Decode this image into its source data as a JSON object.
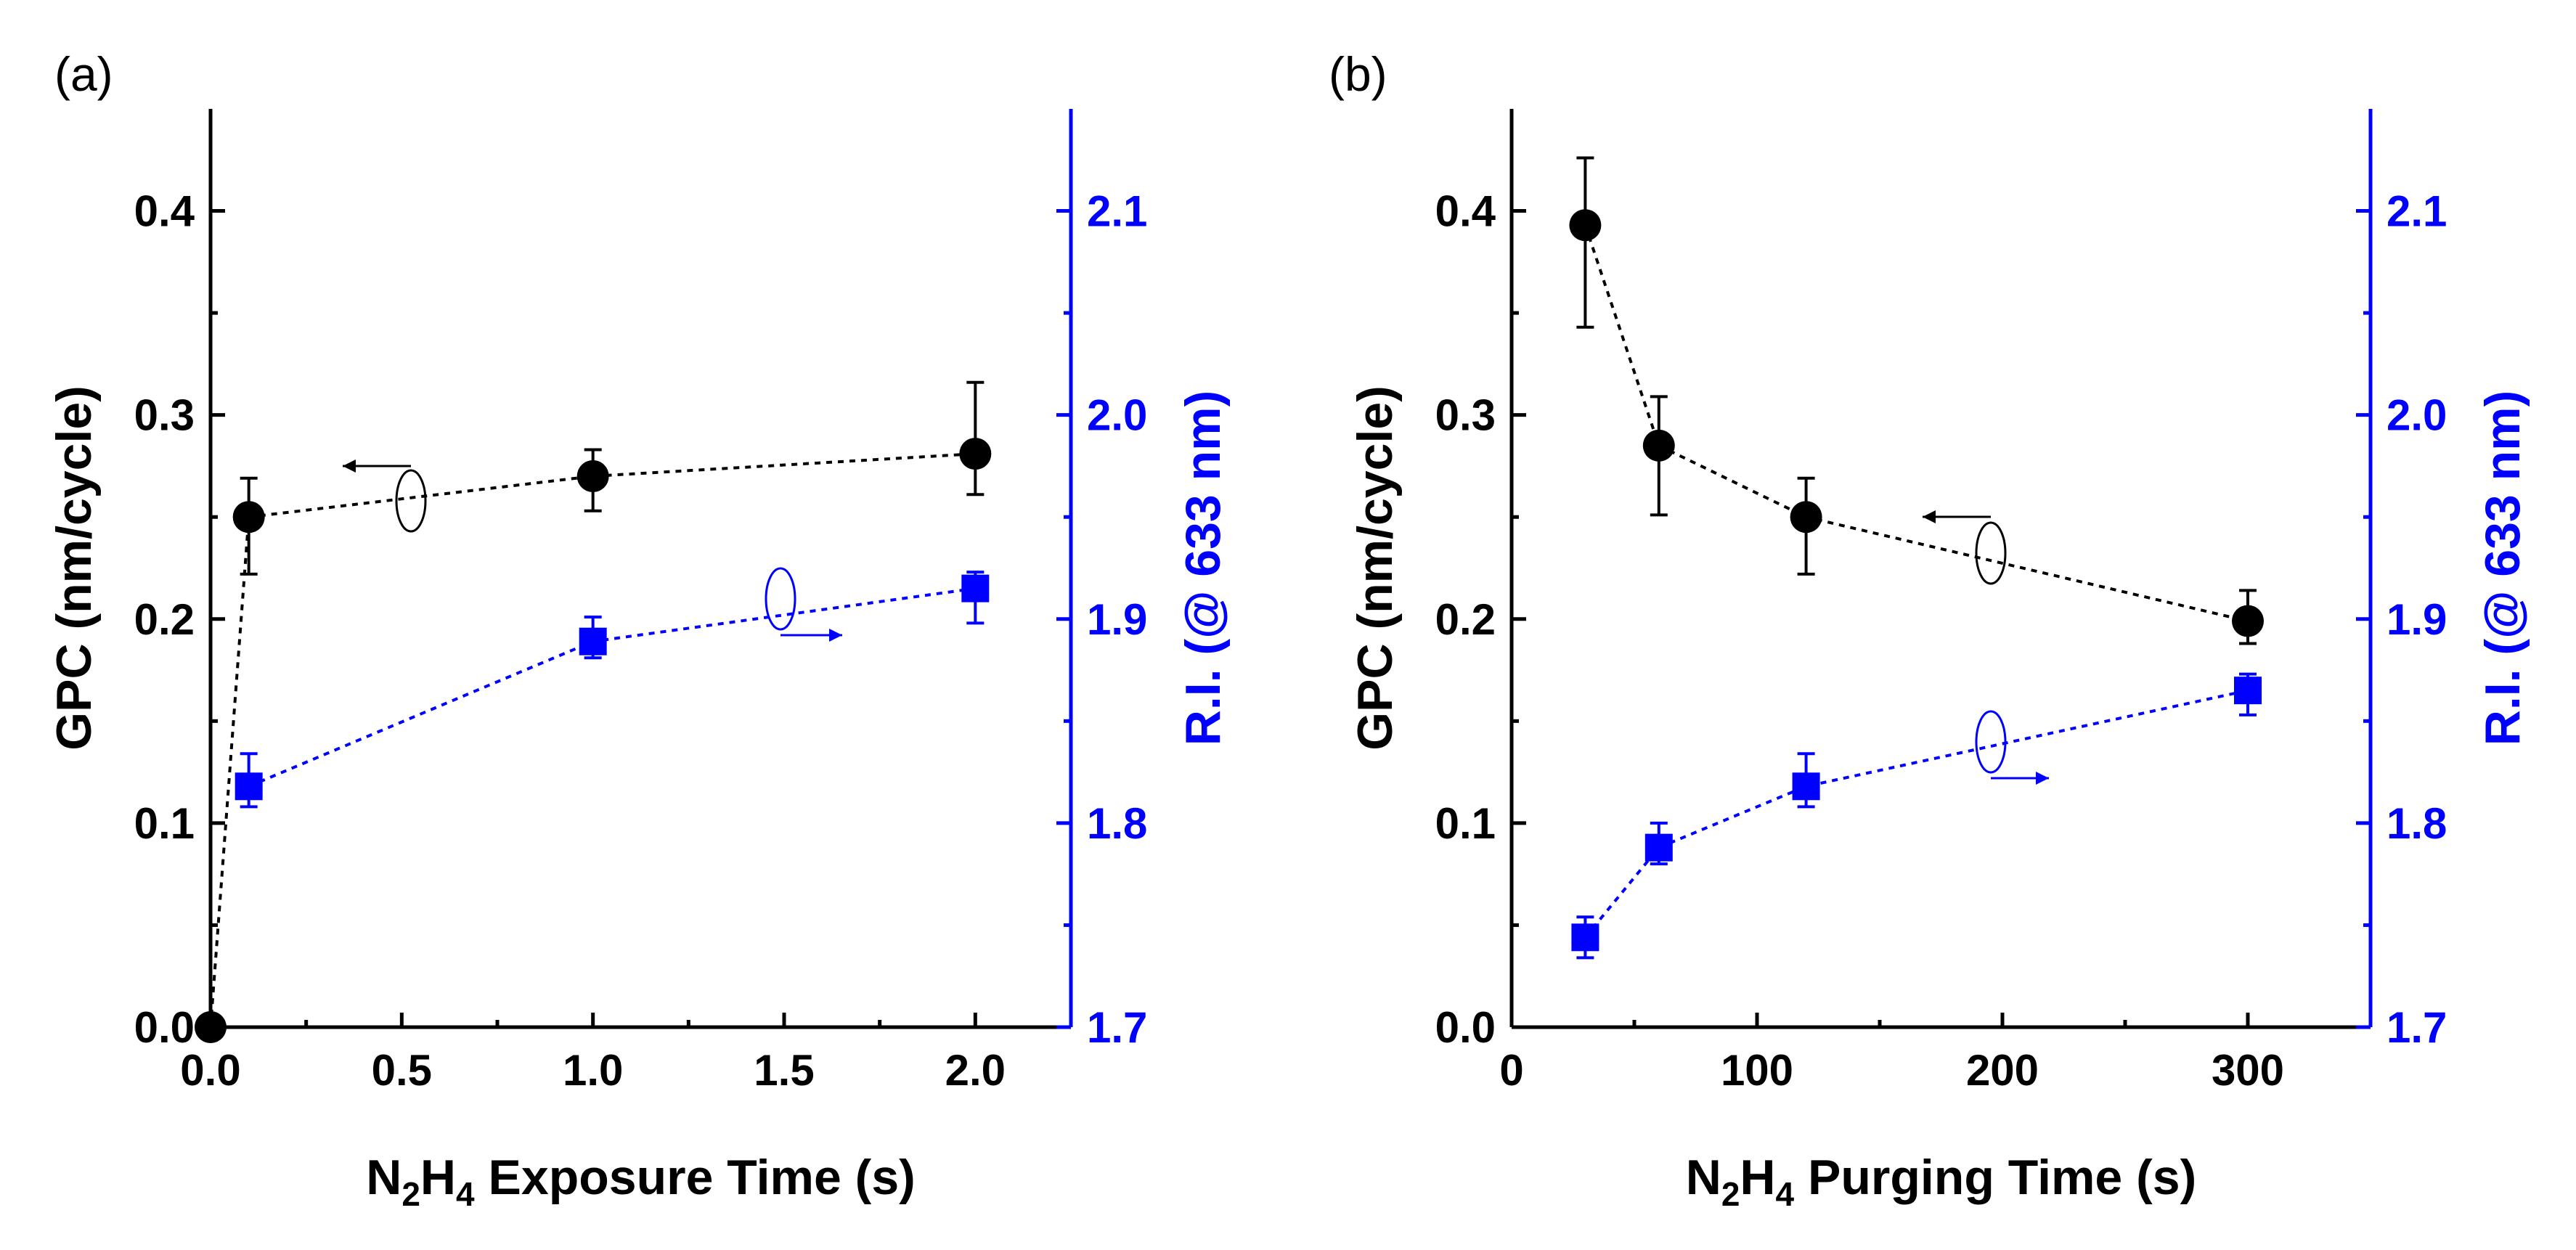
{
  "chart_data": [
    {
      "type": "scatter",
      "panel_label": "(a)",
      "xlabel_parts": [
        "N",
        "2",
        "H",
        "4",
        " Exposure Time (s)"
      ],
      "ylabel_left": "GPC (nm/cycle)",
      "ylabel_right": "R.I. (@ 633 nm)",
      "xlim": [
        0,
        2.25
      ],
      "ylim_left": [
        0,
        0.45
      ],
      "ylim_right": [
        1.7,
        2.15
      ],
      "xticks": [
        0,
        0.5,
        1.0,
        1.5,
        2.0
      ],
      "xtick_labels": [
        "0.0",
        "0.5",
        "1.0",
        "1.5",
        "2.0"
      ],
      "yticks_left": [
        0,
        0.1,
        0.2,
        0.3,
        0.4
      ],
      "ytick_labels_left": [
        "0.0",
        "0.1",
        "0.2",
        "0.3",
        "0.4"
      ],
      "yticks_right": [
        1.7,
        1.8,
        1.9,
        2.0,
        2.1
      ],
      "ytick_labels_right": [
        "1.7",
        "1.8",
        "1.9",
        "2.0",
        "2.1"
      ],
      "series": [
        {
          "name": "GPC",
          "axis": "left",
          "color": "#000000",
          "marker": "circle",
          "x": [
            0,
            0.1,
            1.0,
            2.0
          ],
          "values": [
            0,
            0.25,
            0.27,
            0.281
          ],
          "err_low": [
            0,
            0.028,
            0.017,
            0.02
          ],
          "err_high": [
            0,
            0.019,
            0.013,
            0.035
          ]
        },
        {
          "name": "R.I.",
          "axis": "right",
          "color": "#0000ff",
          "marker": "square",
          "x": [
            0.1,
            1.0,
            2.0
          ],
          "values": [
            1.818,
            1.889,
            1.915
          ],
          "err_low": [
            0.01,
            0.008,
            0.017
          ],
          "err_high": [
            0.016,
            0.012,
            0.008
          ]
        }
      ],
      "annotations": [
        {
          "type": "arrow",
          "points_to": "left",
          "series": "GPC"
        },
        {
          "type": "arrow",
          "points_to": "right",
          "series": "R.I."
        }
      ]
    },
    {
      "type": "scatter",
      "panel_label": "(b)",
      "xlabel_parts": [
        "N",
        "2",
        "H",
        "4",
        " Purging Time (s)"
      ],
      "ylabel_left": "GPC (nm/cycle)",
      "ylabel_right": "R.I. (@ 633 nm)",
      "xlim": [
        0,
        350
      ],
      "ylim_left": [
        0,
        0.45
      ],
      "ylim_right": [
        1.7,
        2.15
      ],
      "xticks": [
        0,
        100,
        200,
        300
      ],
      "xtick_labels": [
        "0",
        "100",
        "200",
        "300"
      ],
      "yticks_left": [
        0,
        0.1,
        0.2,
        0.3,
        0.4
      ],
      "ytick_labels_left": [
        "0.0",
        "0.1",
        "0.2",
        "0.3",
        "0.4"
      ],
      "yticks_right": [
        1.7,
        1.8,
        1.9,
        2.0,
        2.1
      ],
      "ytick_labels_right": [
        "1.7",
        "1.8",
        "1.9",
        "2.0",
        "2.1"
      ],
      "series": [
        {
          "name": "GPC",
          "axis": "left",
          "color": "#000000",
          "marker": "circle",
          "x": [
            30,
            60,
            120,
            300
          ],
          "values": [
            0.393,
            0.285,
            0.25,
            0.199
          ],
          "err_low": [
            0.05,
            0.034,
            0.028,
            0.011
          ],
          "err_high": [
            0.033,
            0.024,
            0.019,
            0.015
          ]
        },
        {
          "name": "R.I.",
          "axis": "right",
          "color": "#0000ff",
          "marker": "square",
          "x": [
            30,
            60,
            120,
            300
          ],
          "values": [
            1.744,
            1.788,
            1.818,
            1.865
          ],
          "err_low": [
            0.01,
            0.008,
            0.01,
            0.012
          ],
          "err_high": [
            0.01,
            0.012,
            0.016,
            0.008
          ]
        }
      ],
      "annotations": [
        {
          "type": "arrow",
          "points_to": "left",
          "series": "GPC"
        },
        {
          "type": "arrow",
          "points_to": "right",
          "series": "R.I."
        }
      ]
    }
  ]
}
